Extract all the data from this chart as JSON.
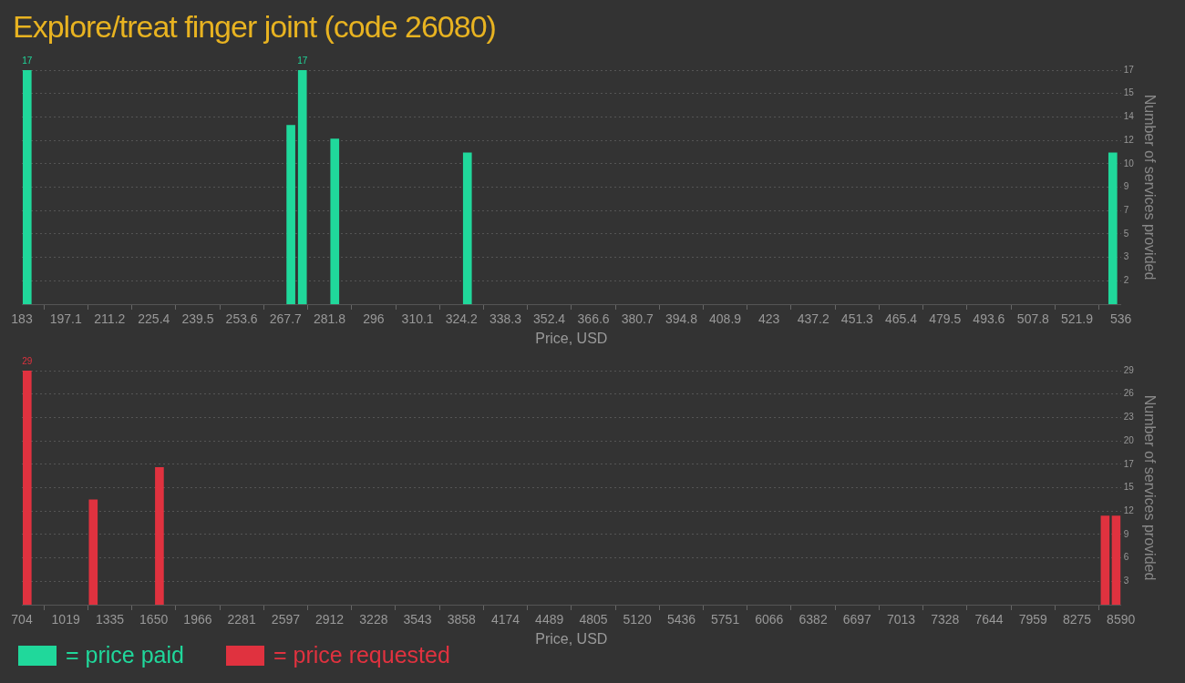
{
  "chart_data": [
    {
      "type": "bar",
      "title": "Explore/treat finger joint (code 26080)",
      "xlabel": "Price, USD",
      "ylabel": "Number of services provided",
      "series": [
        {
          "name": "= price paid",
          "color": "#20d89b",
          "x": [
            184.7,
            269.4,
            273.1,
            283.5,
            326.1,
            533.4
          ],
          "values": [
            17,
            13,
            17,
            12,
            11,
            11
          ],
          "value_labels": [
            "17",
            null,
            "17",
            null,
            null,
            null
          ]
        }
      ],
      "xlim": [
        183,
        536
      ],
      "xticks": [
        183,
        197.1,
        211.2,
        225.4,
        239.5,
        253.6,
        267.7,
        281.8,
        296,
        310.1,
        324.2,
        338.3,
        352.4,
        366.6,
        380.7,
        394.8,
        408.9,
        423,
        437.2,
        451.3,
        465.4,
        479.5,
        493.6,
        507.8,
        521.9,
        536
      ],
      "ylim": [
        0,
        17
      ],
      "yticks": [
        {
          "value": 1.7,
          "label": "2"
        },
        {
          "value": 3.4,
          "label": "3"
        },
        {
          "value": 5.1,
          "label": "5"
        },
        {
          "value": 6.8,
          "label": "7"
        },
        {
          "value": 8.5,
          "label": "9"
        },
        {
          "value": 10.2,
          "label": "10"
        },
        {
          "value": 11.9,
          "label": "12"
        },
        {
          "value": 13.6,
          "label": "14"
        },
        {
          "value": 15.3,
          "label": "15"
        },
        17
      ],
      "grid": "y",
      "legend": "bottom"
    },
    {
      "type": "bar",
      "xlabel": "Price, USD",
      "ylabel": "Number of services provided",
      "series": [
        {
          "name": "= price requested",
          "color": "#e0323f",
          "x": [
            742,
            1216,
            1691,
            8477,
            8556
          ],
          "values": [
            29,
            13,
            17,
            11,
            11
          ],
          "value_labels": [
            "29",
            null,
            null,
            null,
            null
          ]
        }
      ],
      "xlim": [
        704,
        8590
      ],
      "xticks": [
        704,
        1019,
        1335,
        1650,
        1966,
        2281,
        2597,
        2912,
        3228,
        3543,
        3858,
        4174,
        4489,
        4805,
        5120,
        5436,
        5751,
        6066,
        6382,
        6697,
        7013,
        7328,
        7644,
        7959,
        8275,
        8590
      ],
      "ylim": [
        0,
        29
      ],
      "yticks": [
        {
          "value": 2.9,
          "label": "3"
        },
        {
          "value": 5.8,
          "label": "6"
        },
        {
          "value": 8.7,
          "label": "9"
        },
        {
          "value": 11.6,
          "label": "12"
        },
        {
          "value": 14.5,
          "label": "15"
        },
        {
          "value": 17.4,
          "label": "17"
        },
        {
          "value": 20.3,
          "label": "20"
        },
        {
          "value": 23.2,
          "label": "23"
        },
        {
          "value": 26.1,
          "label": "26"
        },
        29
      ],
      "grid": "y",
      "legend": "bottom"
    }
  ]
}
